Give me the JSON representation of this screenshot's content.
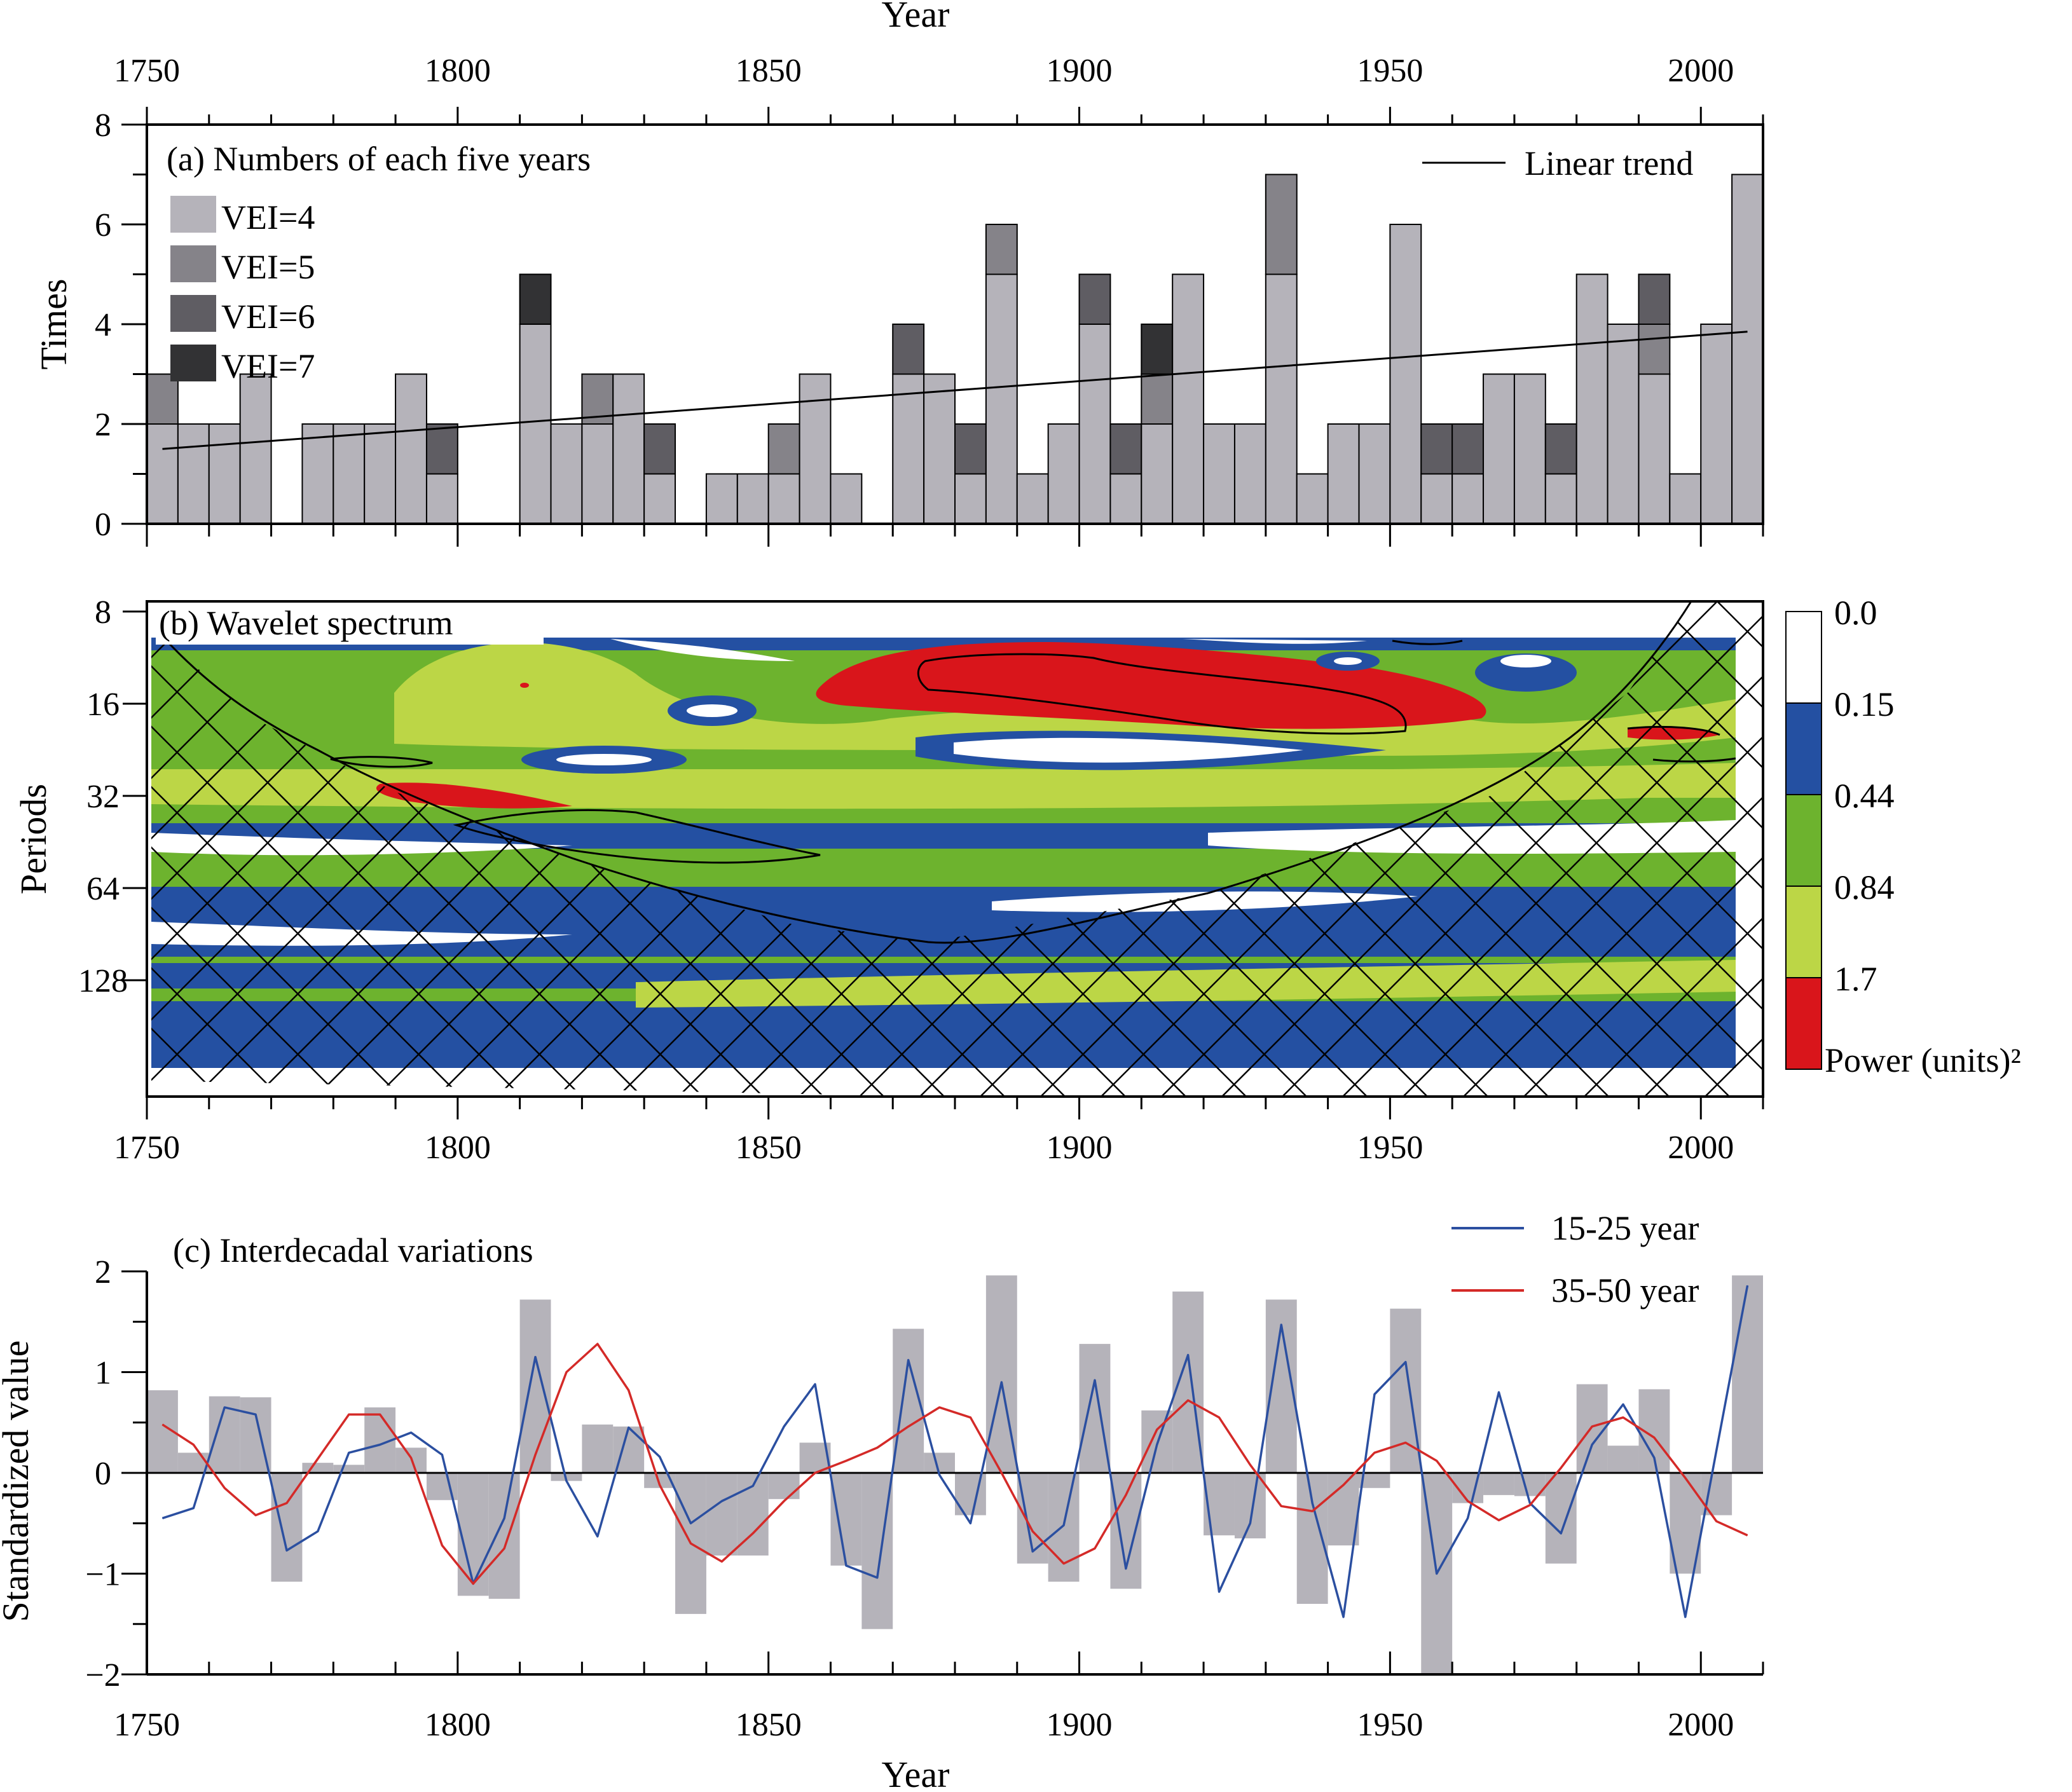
{
  "figure": {
    "top_axis_title": "Year",
    "bottom_axis_title": "Year"
  },
  "chart_data": [
    {
      "id": "a",
      "type": "bar",
      "stacked": true,
      "title": "(a) Numbers of each five years",
      "xlabel": "Year",
      "ylabel": "Times",
      "xlim": [
        1750,
        2010
      ],
      "ylim": [
        0,
        8
      ],
      "xticks": [
        1750,
        1800,
        1850,
        1900,
        1950,
        2000
      ],
      "yticks": [
        0,
        2,
        4,
        6,
        8
      ],
      "bin_width": 5,
      "bin_starts": [
        1750,
        1755,
        1760,
        1765,
        1770,
        1775,
        1780,
        1785,
        1790,
        1795,
        1800,
        1805,
        1810,
        1815,
        1820,
        1825,
        1830,
        1835,
        1840,
        1845,
        1850,
        1855,
        1860,
        1865,
        1870,
        1875,
        1880,
        1885,
        1890,
        1895,
        1900,
        1905,
        1910,
        1915,
        1920,
        1925,
        1930,
        1935,
        1940,
        1945,
        1950,
        1955,
        1960,
        1965,
        1970,
        1975,
        1980,
        1985,
        1990,
        1995,
        2000,
        2005
      ],
      "series": [
        {
          "name": "VEI=4",
          "color": "#b5b3ba",
          "values": [
            2,
            2,
            2,
            3,
            0,
            2,
            2,
            2,
            3,
            1,
            0,
            0,
            4,
            2,
            2,
            3,
            1,
            0,
            1,
            1,
            1,
            3,
            1,
            0,
            3,
            3,
            1,
            5,
            1,
            2,
            4,
            1,
            2,
            5,
            2,
            2,
            5,
            1,
            2,
            2,
            6,
            1,
            1,
            3,
            3,
            1,
            5,
            4,
            3,
            1,
            4,
            7
          ]
        },
        {
          "name": "VEI=5",
          "color": "#858389",
          "values": [
            1,
            0,
            0,
            0,
            0,
            0,
            0,
            0,
            0,
            0,
            0,
            0,
            0,
            0,
            1,
            0,
            0,
            0,
            0,
            0,
            1,
            0,
            0,
            0,
            0,
            0,
            0,
            1,
            0,
            0,
            0,
            0,
            1,
            0,
            0,
            0,
            2,
            0,
            0,
            0,
            0,
            0,
            0,
            0,
            0,
            0,
            0,
            0,
            1,
            0,
            0,
            0
          ]
        },
        {
          "name": "VEI=6",
          "color": "#5f5d63",
          "values": [
            0,
            0,
            0,
            0,
            0,
            0,
            0,
            0,
            0,
            1,
            0,
            0,
            0,
            0,
            0,
            0,
            1,
            0,
            0,
            0,
            0,
            0,
            0,
            0,
            1,
            0,
            1,
            0,
            0,
            0,
            1,
            1,
            0,
            0,
            0,
            0,
            0,
            0,
            0,
            0,
            0,
            1,
            1,
            0,
            0,
            1,
            0,
            0,
            1,
            0,
            0,
            0
          ]
        },
        {
          "name": "VEI=7",
          "color": "#323234",
          "values": [
            0,
            0,
            0,
            0,
            0,
            0,
            0,
            0,
            0,
            0,
            0,
            0,
            1,
            0,
            0,
            0,
            0,
            0,
            0,
            0,
            0,
            0,
            0,
            0,
            0,
            0,
            0,
            0,
            0,
            0,
            0,
            0,
            1,
            0,
            0,
            0,
            0,
            0,
            0,
            0,
            0,
            0,
            0,
            0,
            0,
            0,
            0,
            0,
            0,
            0,
            0,
            0
          ]
        }
      ],
      "trend": {
        "name": "Linear trend",
        "x": [
          1752.5,
          2007.5
        ],
        "y": [
          1.5,
          3.85
        ]
      }
    },
    {
      "id": "b",
      "type": "heatmap",
      "title": "(b) Wavelet spectrum",
      "ylabel": "Periods",
      "xlim": [
        1750,
        2010
      ],
      "xticks": [
        1750,
        1800,
        1850,
        1900,
        1950,
        2000
      ],
      "yticks": [
        8,
        16,
        32,
        64,
        128
      ],
      "y_scale": "log2",
      "colorbar": {
        "levels": [
          "0.0",
          "0.15",
          "0.44",
          "0.84",
          "1.7"
        ],
        "colors": [
          "#ffffff",
          "#2450a2",
          "#6db32e",
          "#bcd646",
          "#d9151b"
        ],
        "label": "Power (units)²"
      }
    },
    {
      "id": "c",
      "type": "line",
      "title": "(c) Interdecadal variations",
      "xlabel": "Year",
      "ylabel": "Standardized value",
      "xlim": [
        1750,
        2010
      ],
      "ylim": [
        -2,
        2
      ],
      "xticks": [
        1750,
        1800,
        1850,
        1900,
        1950,
        2000
      ],
      "yticks": [
        -2,
        -1,
        0,
        1,
        2
      ],
      "bars": {
        "color": "#b5b3ba",
        "x": [
          1752.5,
          1757.5,
          1762.5,
          1767.5,
          1772.5,
          1777.5,
          1782.5,
          1787.5,
          1792.5,
          1797.5,
          1802.5,
          1807.5,
          1812.5,
          1817.5,
          1822.5,
          1827.5,
          1832.5,
          1837.5,
          1842.5,
          1847.5,
          1852.5,
          1857.5,
          1862.5,
          1867.5,
          1872.5,
          1877.5,
          1882.5,
          1887.5,
          1892.5,
          1897.5,
          1902.5,
          1907.5,
          1912.5,
          1917.5,
          1922.5,
          1927.5,
          1932.5,
          1937.5,
          1942.5,
          1947.5,
          1952.5,
          1957.5,
          1962.5,
          1967.5,
          1972.5,
          1977.5,
          1982.5,
          1987.5,
          1992.5,
          1997.5,
          2002.5,
          2007.5
        ],
        "values": [
          0.82,
          0.2,
          0.76,
          0.75,
          -1.08,
          0.1,
          0.08,
          0.65,
          0.25,
          -0.27,
          -1.22,
          -1.25,
          1.72,
          -0.08,
          0.48,
          0.46,
          -0.15,
          -1.4,
          -0.82,
          -0.82,
          -0.26,
          0.3,
          -0.92,
          -1.55,
          1.43,
          0.2,
          -0.42,
          1.96,
          -0.9,
          -1.08,
          1.28,
          -1.15,
          0.62,
          1.8,
          -0.62,
          -0.65,
          1.72,
          -1.3,
          -0.72,
          -0.15,
          1.63,
          -2.0,
          -0.3,
          -0.22,
          -0.23,
          -0.9,
          0.88,
          0.27,
          0.83,
          -1.0,
          -0.42,
          1.96
        ]
      },
      "series": [
        {
          "name": "15-25 year",
          "color": "#2b4fa0",
          "x": [
            1752.5,
            1757.5,
            1762.5,
            1767.5,
            1772.5,
            1777.5,
            1782.5,
            1787.5,
            1792.5,
            1797.5,
            1802.5,
            1807.5,
            1812.5,
            1817.5,
            1822.5,
            1827.5,
            1832.5,
            1837.5,
            1842.5,
            1847.5,
            1852.5,
            1857.5,
            1862.5,
            1867.5,
            1872.5,
            1877.5,
            1882.5,
            1887.5,
            1892.5,
            1897.5,
            1902.5,
            1907.5,
            1912.5,
            1917.5,
            1922.5,
            1927.5,
            1932.5,
            1937.5,
            1942.5,
            1947.5,
            1952.5,
            1957.5,
            1962.5,
            1967.5,
            1972.5,
            1977.5,
            1982.5,
            1987.5,
            1992.5,
            1997.5,
            2002.5,
            2007.5
          ],
          "values": [
            -0.45,
            -0.35,
            0.65,
            0.58,
            -0.77,
            -0.58,
            0.2,
            0.28,
            0.4,
            0.18,
            -1.1,
            -0.45,
            1.15,
            -0.08,
            -0.63,
            0.45,
            0.16,
            -0.5,
            -0.28,
            -0.13,
            0.46,
            0.88,
            -0.92,
            -1.04,
            1.12,
            -0.02,
            -0.5,
            0.9,
            -0.78,
            -0.52,
            0.92,
            -0.95,
            0.28,
            1.17,
            -1.18,
            -0.5,
            1.47,
            -0.3,
            -1.43,
            0.78,
            1.1,
            -1.0,
            -0.45,
            0.8,
            -0.3,
            -0.6,
            0.28,
            0.68,
            0.15,
            -1.43,
            0.22,
            1.86
          ]
        },
        {
          "name": "35-50 year",
          "color": "#d42a28",
          "x": [
            1752.5,
            1757.5,
            1762.5,
            1767.5,
            1772.5,
            1777.5,
            1782.5,
            1787.5,
            1792.5,
            1797.5,
            1802.5,
            1807.5,
            1812.5,
            1817.5,
            1822.5,
            1827.5,
            1832.5,
            1837.5,
            1842.5,
            1847.5,
            1852.5,
            1857.5,
            1862.5,
            1867.5,
            1872.5,
            1877.5,
            1882.5,
            1887.5,
            1892.5,
            1897.5,
            1902.5,
            1907.5,
            1912.5,
            1917.5,
            1922.5,
            1927.5,
            1932.5,
            1937.5,
            1942.5,
            1947.5,
            1952.5,
            1957.5,
            1962.5,
            1967.5,
            1972.5,
            1977.5,
            1982.5,
            1987.5,
            1992.5,
            1997.5,
            2002.5,
            2007.5
          ],
          "values": [
            0.48,
            0.28,
            -0.15,
            -0.42,
            -0.3,
            0.14,
            0.58,
            0.58,
            0.15,
            -0.72,
            -1.1,
            -0.75,
            0.18,
            1.0,
            1.28,
            0.82,
            -0.12,
            -0.7,
            -0.88,
            -0.6,
            -0.28,
            0.0,
            0.12,
            0.25,
            0.46,
            0.65,
            0.55,
            0.0,
            -0.58,
            -0.9,
            -0.75,
            -0.22,
            0.43,
            0.72,
            0.55,
            0.08,
            -0.33,
            -0.38,
            -0.12,
            0.2,
            0.3,
            0.12,
            -0.28,
            -0.47,
            -0.32,
            0.05,
            0.46,
            0.55,
            0.35,
            -0.05,
            -0.48,
            -0.62
          ]
        }
      ]
    }
  ]
}
